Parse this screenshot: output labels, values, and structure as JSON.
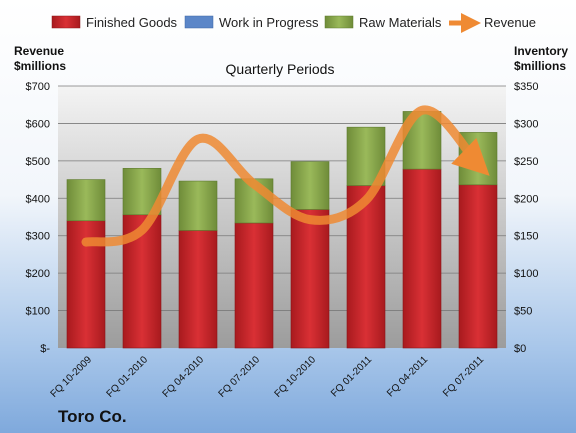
{
  "chart_data": {
    "type": "bar",
    "subtitle": "Quarterly Periods",
    "company": "Toro Co.",
    "left_axis_title": [
      "Revenue",
      "$millions"
    ],
    "right_axis_title": [
      "Inventory",
      "$millions"
    ],
    "categories": [
      "FQ 10-2009",
      "FQ 01-2010",
      "FQ 04-2010",
      "FQ 07-2010",
      "FQ 10-2010",
      "FQ 01-2011",
      "FQ 04-2011",
      "FQ 07-2011"
    ],
    "series": [
      {
        "name": "Finished Goods",
        "axis": "right",
        "stack": true,
        "color": "#c9272b",
        "values": [
          170,
          178,
          157,
          167,
          185,
          217,
          239,
          218
        ]
      },
      {
        "name": "Work in Progress",
        "axis": "right",
        "stack": true,
        "color": "#5b86c8",
        "values": [
          0,
          0,
          0,
          0,
          0,
          0,
          0,
          0
        ]
      },
      {
        "name": "Raw Materials",
        "axis": "right",
        "stack": true,
        "color": "#8faa4f",
        "values": [
          55,
          62,
          66,
          59,
          64,
          78,
          77,
          70
        ]
      },
      {
        "name": "Revenue",
        "axis": "left",
        "type": "line",
        "color": "#f08a32",
        "values": [
          283,
          315,
          558,
          438,
          343,
          395,
          635,
          490
        ]
      }
    ],
    "left_axis": {
      "ylim": [
        0,
        700
      ],
      "ticks": [
        "$-",
        "$100",
        "$200",
        "$300",
        "$400",
        "$500",
        "$600",
        "$700"
      ]
    },
    "right_axis": {
      "ylim": [
        0,
        350
      ],
      "ticks": [
        "$0",
        "$50",
        "$100",
        "$150",
        "$200",
        "$250",
        "$300",
        "$350"
      ]
    },
    "grid": true,
    "legend_position": "top"
  }
}
